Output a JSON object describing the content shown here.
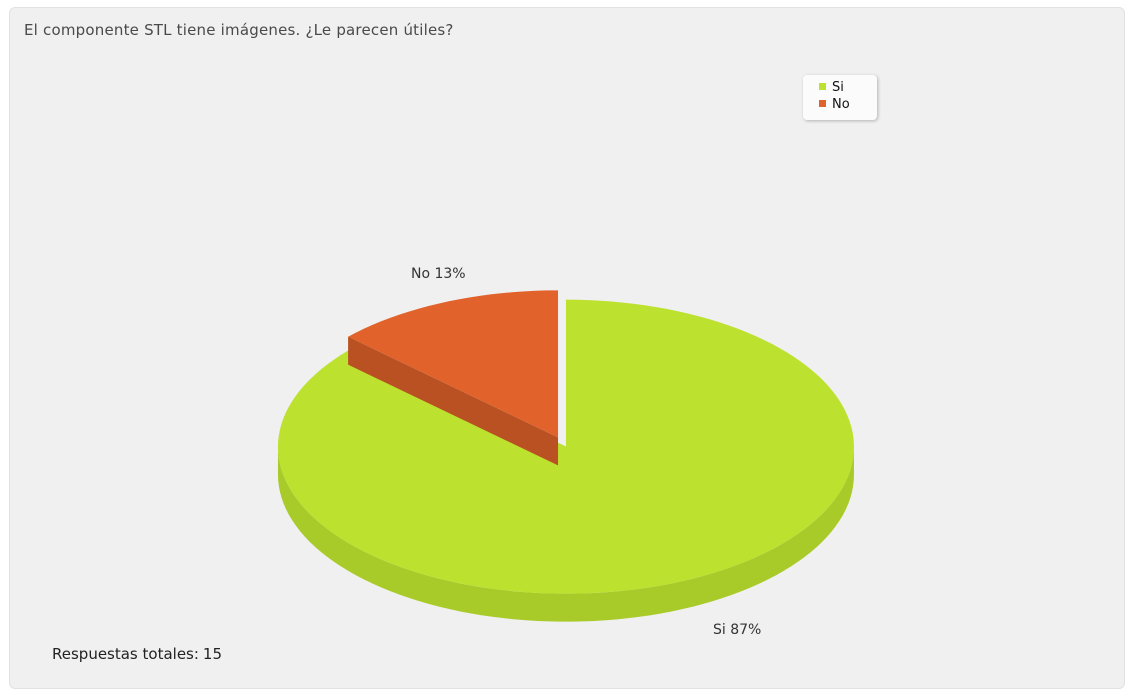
{
  "question": "El componente STL tiene imágenes. ¿Le parecen útiles?",
  "total": {
    "label": "Respuestas totales:",
    "value": "15"
  },
  "chart_data": {
    "type": "pie",
    "categories": [
      "Si",
      "No"
    ],
    "values": [
      87,
      13
    ],
    "total_responses": 15,
    "legend": [
      {
        "label": "Si",
        "color": "#bce12e"
      },
      {
        "label": "No",
        "color": "#e1632b"
      }
    ],
    "slice_labels": [
      "Si 87%",
      "No 13%"
    ],
    "colors": {
      "Si": "#bce12e",
      "No": "#e1632b"
    },
    "style": "3d-exploded",
    "legend_position": "top-right"
  }
}
